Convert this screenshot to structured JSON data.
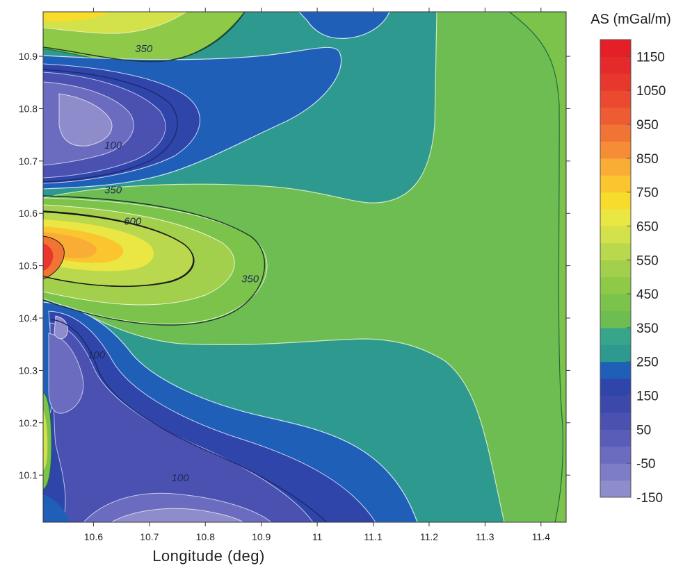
{
  "chart_data": {
    "type": "heatmap",
    "subtype": "filled-contour",
    "title": "",
    "xlabel": "Longitude (deg)",
    "ylabel": "",
    "x_tick_labels": [
      "10.6",
      "10.7",
      "10.8",
      "10.9",
      "11",
      "11.1",
      "11.2",
      "11.3",
      "11.4"
    ],
    "x_ticks": [
      10.6,
      10.7,
      10.8,
      10.9,
      11.0,
      11.1,
      11.2,
      11.3,
      11.4
    ],
    "y_tick_labels": [
      "10.1",
      "10.2",
      "10.3",
      "10.4",
      "10.5",
      "10.6",
      "10.7",
      "10.8",
      "10.9"
    ],
    "y_ticks": [
      10.1,
      10.2,
      10.3,
      10.4,
      10.5,
      10.6,
      10.7,
      10.8,
      10.9
    ],
    "xlim": [
      10.51,
      11.445
    ],
    "ylim": [
      10.01,
      10.985
    ],
    "grid": false,
    "colorbar": {
      "title": "AS (mGal/m)",
      "placement": "right",
      "tick_labels": [
        "1150",
        "1050",
        "950",
        "850",
        "750",
        "650",
        "550",
        "450",
        "350",
        "250",
        "150",
        "50",
        "-50",
        "-150"
      ],
      "ticks": [
        1150,
        1050,
        950,
        850,
        750,
        650,
        550,
        450,
        350,
        250,
        150,
        50,
        -50,
        -150
      ],
      "levels": [
        {
          "from": -150,
          "to": -100,
          "color": "#8f8ccc"
        },
        {
          "from": -100,
          "to": -50,
          "color": "#7d7cc6"
        },
        {
          "from": -50,
          "to": 0,
          "color": "#6b6cbf"
        },
        {
          "from": 0,
          "to": 50,
          "color": "#5a5db7"
        },
        {
          "from": 50,
          "to": 100,
          "color": "#4a51b0"
        },
        {
          "from": 100,
          "to": 150,
          "color": "#3c49ab"
        },
        {
          "from": 150,
          "to": 200,
          "color": "#2f45aa"
        },
        {
          "from": 200,
          "to": 250,
          "color": "#1f5fb8"
        },
        {
          "from": 250,
          "to": 300,
          "color": "#2e9a8f"
        },
        {
          "from": 300,
          "to": 350,
          "color": "#36a58a"
        },
        {
          "from": 350,
          "to": 400,
          "color": "#6dbd52"
        },
        {
          "from": 400,
          "to": 450,
          "color": "#7cc34c"
        },
        {
          "from": 450,
          "to": 500,
          "color": "#8ec948"
        },
        {
          "from": 500,
          "to": 550,
          "color": "#a2cf4c"
        },
        {
          "from": 550,
          "to": 600,
          "color": "#b9d84e"
        },
        {
          "from": 600,
          "to": 650,
          "color": "#d3e14b"
        },
        {
          "from": 650,
          "to": 700,
          "color": "#eae644"
        },
        {
          "from": 700,
          "to": 750,
          "color": "#f7dc2c"
        },
        {
          "from": 750,
          "to": 800,
          "color": "#fbc530"
        },
        {
          "from": 800,
          "to": 850,
          "color": "#f9ad35"
        },
        {
          "from": 850,
          "to": 900,
          "color": "#f68c35"
        },
        {
          "from": 900,
          "to": 950,
          "color": "#f27434"
        },
        {
          "from": 950,
          "to": 1000,
          "color": "#ee5c33"
        },
        {
          "from": 1000,
          "to": 1050,
          "color": "#eb4a30"
        },
        {
          "from": 1050,
          "to": 1100,
          "color": "#e8382e"
        },
        {
          "from": 1100,
          "to": 1150,
          "color": "#e52a2c"
        },
        {
          "from": 1150,
          "to": 1200,
          "color": "#e41f27"
        }
      ]
    },
    "contour_labels": [
      {
        "text": "350",
        "lon": 10.69,
        "lat": 10.915
      },
      {
        "text": "100",
        "lon": 10.635,
        "lat": 10.73
      },
      {
        "text": "350",
        "lon": 10.635,
        "lat": 10.645
      },
      {
        "text": "600",
        "lon": 10.67,
        "lat": 10.585
      },
      {
        "text": "350",
        "lon": 10.88,
        "lat": 10.475
      },
      {
        "text": "100",
        "lon": 10.605,
        "lat": 10.33
      },
      {
        "text": "100",
        "lon": 10.755,
        "lat": 10.095
      }
    ],
    "anomaly_regions": [
      {
        "name": "north-west-high",
        "lon": 10.6,
        "lat": 10.97,
        "value_range": [
          600,
          700
        ]
      },
      {
        "name": "west-central-high",
        "lon": 10.53,
        "lat": 10.52,
        "value_range": [
          1000,
          1150
        ]
      },
      {
        "name": "north-west-low",
        "lon": 10.55,
        "lat": 10.77,
        "value_range": [
          -50,
          50
        ]
      },
      {
        "name": "south-west-low",
        "lon": 10.6,
        "lat": 10.25,
        "value_range": [
          -50,
          50
        ]
      },
      {
        "name": "south-low",
        "lon": 10.72,
        "lat": 10.02,
        "value_range": [
          -150,
          -50
        ]
      },
      {
        "name": "eastern-plateau",
        "lon": 11.3,
        "lat": 10.5,
        "value_range": [
          350,
          400
        ]
      }
    ]
  }
}
